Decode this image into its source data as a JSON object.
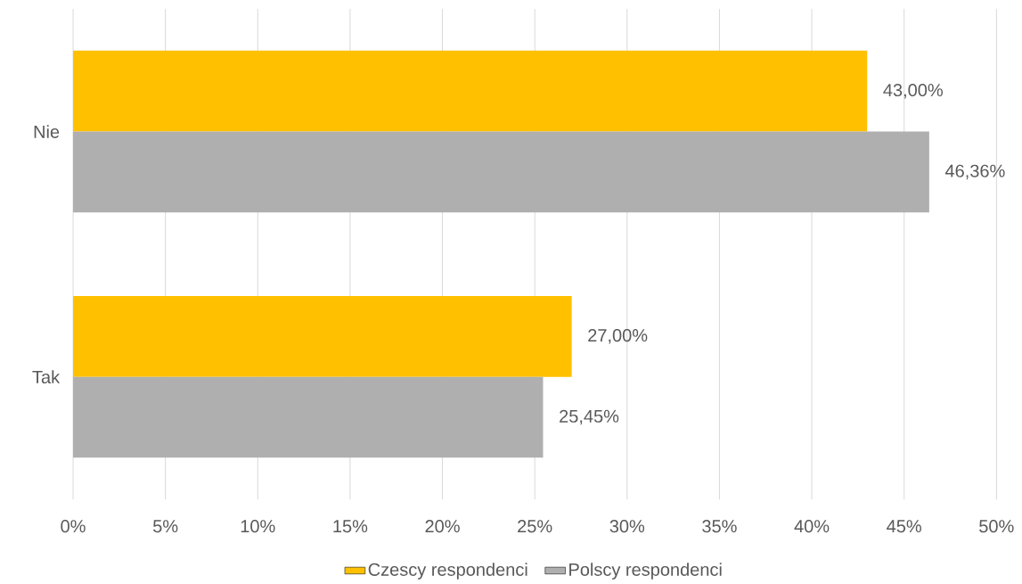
{
  "chart_data": {
    "type": "bar",
    "orientation": "horizontal",
    "categories": [
      "Nie",
      "Tak"
    ],
    "series": [
      {
        "name": "Czescy respondenci",
        "color": "#ffc000",
        "values": [
          43.0,
          27.0
        ],
        "value_labels": [
          "43,00%",
          "27,00%"
        ]
      },
      {
        "name": "Polscy respondenci",
        "color": "#afafaf",
        "values": [
          46.36,
          25.45
        ],
        "value_labels": [
          "46,36%",
          "25,45%"
        ]
      }
    ],
    "xlim": [
      0,
      50
    ],
    "xticks": [
      {
        "value": 0,
        "label": "0%"
      },
      {
        "value": 5,
        "label": "5%"
      },
      {
        "value": 10,
        "label": "10%"
      },
      {
        "value": 15,
        "label": "15%"
      },
      {
        "value": 20,
        "label": "20%"
      },
      {
        "value": 25,
        "label": "25%"
      },
      {
        "value": 30,
        "label": "30%"
      },
      {
        "value": 35,
        "label": "35%"
      },
      {
        "value": 40,
        "label": "40%"
      },
      {
        "value": 45,
        "label": "45%"
      },
      {
        "value": 50,
        "label": "50%"
      }
    ],
    "grid": "x",
    "legend": "bottom"
  }
}
